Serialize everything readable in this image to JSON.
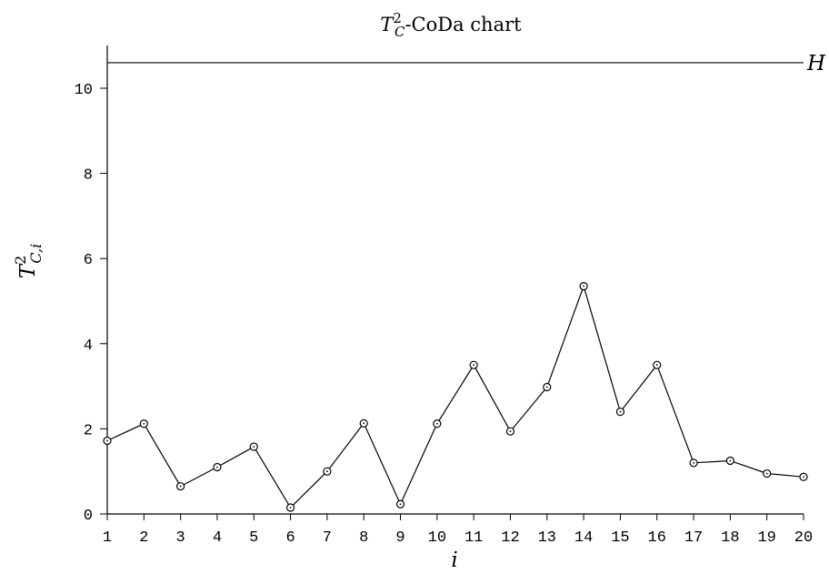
{
  "chart_data": {
    "type": "line",
    "title": {
      "symbol": "T",
      "subscript": "C",
      "superscript": "2",
      "suffix": "-CoDa chart"
    },
    "xlabel": "i",
    "ylabel": {
      "symbol": "T",
      "subscript": "C,i",
      "superscript": "2"
    },
    "x": [
      1,
      2,
      3,
      4,
      5,
      6,
      7,
      8,
      9,
      10,
      11,
      12,
      13,
      14,
      15,
      16,
      17,
      18,
      19,
      20
    ],
    "series": [
      {
        "values": [
          1.72,
          2.12,
          0.65,
          1.1,
          1.58,
          0.15,
          1.0,
          2.13,
          0.23,
          2.12,
          3.5,
          1.94,
          2.98,
          5.35,
          2.4,
          3.5,
          1.2,
          1.25,
          0.95,
          0.87
        ],
        "marker": "open-circle",
        "color": "#000000"
      }
    ],
    "reference_line": {
      "label": "H",
      "value": 10.6
    },
    "xlim": [
      1,
      20
    ],
    "ylim": [
      0,
      11
    ],
    "xticks": [
      1,
      2,
      3,
      4,
      5,
      6,
      7,
      8,
      9,
      10,
      11,
      12,
      13,
      14,
      15,
      16,
      17,
      18,
      19,
      20
    ],
    "yticks": [
      0,
      2,
      4,
      6,
      8,
      10
    ],
    "grid": false,
    "legend": "none"
  }
}
